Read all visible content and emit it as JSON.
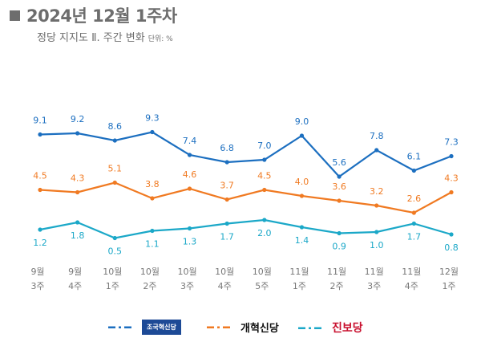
{
  "header": {
    "title": "2024년 12월 1주차",
    "subtitle": "정당 지지도 Ⅱ. 주간 변화",
    "unit": "단위: %"
  },
  "chart_data": {
    "type": "line",
    "title": "정당 지지도 Ⅱ. 주간 변화",
    "ylabel": "%",
    "ylim": [
      0,
      10
    ],
    "grid": false,
    "legend_position": "bottom",
    "categories": [
      [
        "9월",
        "3주"
      ],
      [
        "9월",
        "4주"
      ],
      [
        "10월",
        "1주"
      ],
      [
        "10월",
        "2주"
      ],
      [
        "10월",
        "3주"
      ],
      [
        "10월",
        "4주"
      ],
      [
        "10월",
        "5주"
      ],
      [
        "11월",
        "1주"
      ],
      [
        "11월",
        "2주"
      ],
      [
        "11월",
        "3주"
      ],
      [
        "11월",
        "4주"
      ],
      [
        "12월",
        "1주"
      ]
    ],
    "series": [
      {
        "name": "조국혁신당",
        "color": "#1c6fc0",
        "values": [
          9.1,
          9.2,
          8.6,
          9.3,
          7.4,
          6.8,
          7.0,
          9.0,
          5.6,
          7.8,
          6.1,
          7.3
        ],
        "label_pos": "above"
      },
      {
        "name": "개혁신당",
        "color": "#f07a22",
        "values": [
          4.5,
          4.3,
          5.1,
          3.8,
          4.6,
          3.7,
          4.5,
          4.0,
          3.6,
          3.2,
          2.6,
          4.3
        ],
        "label_pos": "above"
      },
      {
        "name": "진보당",
        "color": "#1ba8c8",
        "values": [
          1.2,
          1.8,
          0.5,
          1.1,
          1.3,
          1.7,
          2.0,
          1.4,
          0.9,
          1.0,
          1.7,
          0.8
        ],
        "label_pos": "below"
      }
    ]
  }
}
